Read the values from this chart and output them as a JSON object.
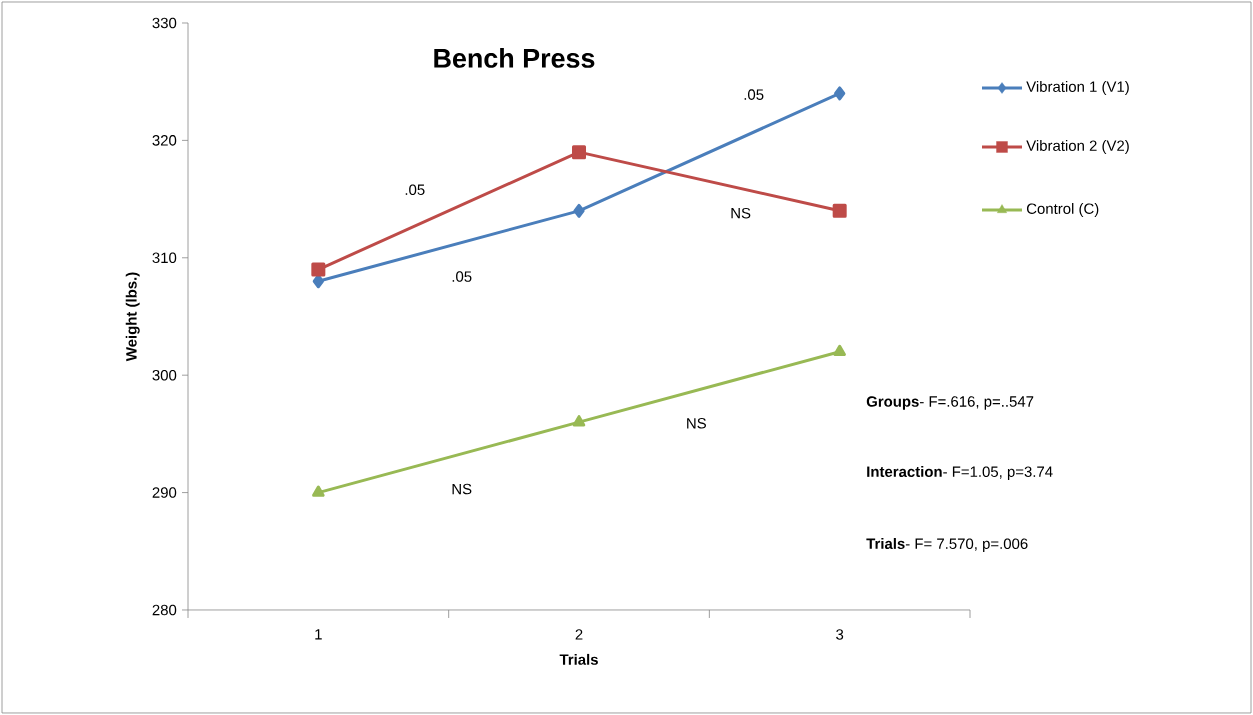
{
  "chart_data": {
    "type": "line",
    "title": "Bench Press",
    "xlabel": "Trials",
    "ylabel": "Weight (lbs.)",
    "categories": [
      "1",
      "2",
      "3"
    ],
    "series": [
      {
        "name": "Vibration 1 (V1)",
        "color": "#4a7ebb",
        "marker": "diamond",
        "values": [
          308,
          314,
          324
        ]
      },
      {
        "name": "Vibration 2 (V2)",
        "color": "#be4b48",
        "marker": "square",
        "values": [
          309,
          319,
          314
        ]
      },
      {
        "name": "Control (C)",
        "color": "#98b954",
        "marker": "triangle",
        "values": [
          290,
          296,
          302
        ]
      }
    ],
    "ylim": [
      280,
      330
    ],
    "yticks": [
      280,
      290,
      300,
      310,
      320,
      330
    ],
    "grid": false,
    "legend": "right",
    "annotations": [
      ".05",
      ".05",
      ".05",
      "NS",
      "NS",
      "NS",
      "**Groups**- F=.616, p=..547",
      "**Interaction**- F=1.05, p=3.74",
      "**Trials**- F= 7.570, p=.006"
    ]
  }
}
